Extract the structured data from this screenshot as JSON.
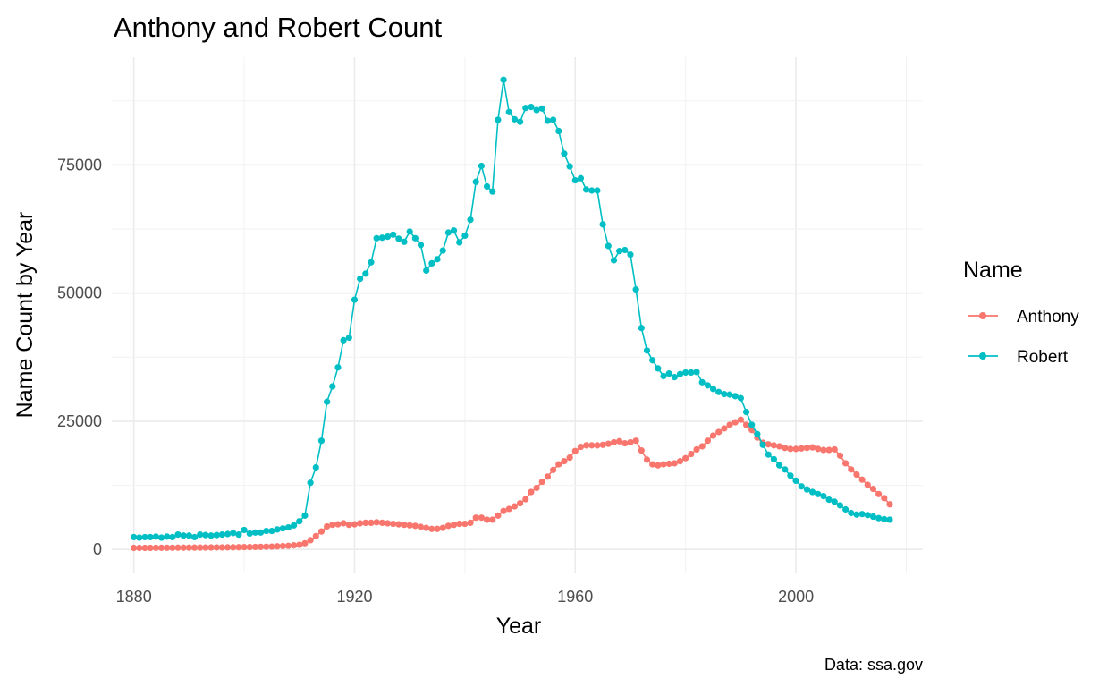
{
  "chart_data": {
    "type": "line",
    "title": "Anthony and Robert Count",
    "xlabel": "Year",
    "ylabel": "Name Count by Year",
    "caption": "Data: ssa.gov",
    "xlim": [
      1876,
      2023
    ],
    "ylim": [
      -4500,
      96000
    ],
    "x_ticks": [
      1880,
      1920,
      1960,
      2000
    ],
    "y_ticks": [
      0,
      25000,
      50000,
      75000
    ],
    "x_tick_labels": [
      "1880",
      "1920",
      "1960",
      "2000"
    ],
    "y_tick_labels": [
      "0",
      "25000",
      "50000",
      "75000"
    ],
    "grid": true,
    "legend": {
      "title": "Name",
      "position": "right"
    },
    "x": [
      1880,
      1881,
      1882,
      1883,
      1884,
      1885,
      1886,
      1887,
      1888,
      1889,
      1890,
      1891,
      1892,
      1893,
      1894,
      1895,
      1896,
      1897,
      1898,
      1899,
      1900,
      1901,
      1902,
      1903,
      1904,
      1905,
      1906,
      1907,
      1908,
      1909,
      1910,
      1911,
      1912,
      1913,
      1914,
      1915,
      1916,
      1917,
      1918,
      1919,
      1920,
      1921,
      1922,
      1923,
      1924,
      1925,
      1926,
      1927,
      1928,
      1929,
      1930,
      1931,
      1932,
      1933,
      1934,
      1935,
      1936,
      1937,
      1938,
      1939,
      1940,
      1941,
      1942,
      1943,
      1944,
      1945,
      1946,
      1947,
      1948,
      1949,
      1950,
      1951,
      1952,
      1953,
      1954,
      1955,
      1956,
      1957,
      1958,
      1959,
      1960,
      1961,
      1962,
      1963,
      1964,
      1965,
      1966,
      1967,
      1968,
      1969,
      1970,
      1971,
      1972,
      1973,
      1974,
      1975,
      1976,
      1977,
      1978,
      1979,
      1980,
      1981,
      1982,
      1983,
      1984,
      1985,
      1986,
      1987,
      1988,
      1989,
      1990,
      1991,
      1992,
      1993,
      1994,
      1995,
      1996,
      1997,
      1998,
      1999,
      2000,
      2001,
      2002,
      2003,
      2004,
      2005,
      2006,
      2007,
      2008,
      2009,
      2010,
      2011,
      2012,
      2013,
      2014,
      2015,
      2016,
      2017
    ],
    "series": [
      {
        "name": "Anthony",
        "color": "#F8766D",
        "values": [
          300,
          300,
          300,
          300,
          320,
          320,
          330,
          330,
          340,
          340,
          350,
          360,
          360,
          370,
          380,
          390,
          400,
          410,
          420,
          430,
          450,
          460,
          480,
          500,
          520,
          550,
          600,
          650,
          700,
          800,
          900,
          1200,
          1800,
          2600,
          3500,
          4500,
          4800,
          4900,
          5100,
          4800,
          4900,
          5100,
          5200,
          5200,
          5300,
          5200,
          5100,
          5000,
          4900,
          4800,
          4700,
          4600,
          4400,
          4200,
          4000,
          4000,
          4200,
          4600,
          4800,
          5000,
          5000,
          5200,
          6200,
          6200,
          5800,
          5800,
          6600,
          7500,
          7900,
          8400,
          9000,
          9800,
          11200,
          12000,
          13200,
          14200,
          15500,
          16600,
          17200,
          17900,
          19200,
          20000,
          20300,
          20300,
          20300,
          20400,
          20600,
          20900,
          21100,
          20700,
          20900,
          21200,
          19300,
          17500,
          16600,
          16400,
          16600,
          16700,
          16800,
          17200,
          17800,
          18600,
          19500,
          20100,
          21200,
          22200,
          22900,
          23600,
          24300,
          24800,
          25300,
          24300,
          23300,
          21800,
          20800,
          20500,
          20300,
          20100,
          19800,
          19600,
          19600,
          19700,
          19800,
          19900,
          19600,
          19400,
          19400,
          19500,
          18300,
          16800,
          15600,
          14600,
          13600,
          12600,
          11800,
          10800,
          10000,
          8800
        ]
      },
      {
        "name": "Robert",
        "color": "#00BFC4",
        "values": [
          2400,
          2300,
          2400,
          2400,
          2500,
          2300,
          2500,
          2400,
          2900,
          2700,
          2700,
          2400,
          2900,
          2800,
          2700,
          2800,
          2900,
          3000,
          3200,
          2900,
          3800,
          3100,
          3300,
          3300,
          3600,
          3600,
          3900,
          4100,
          4300,
          4700,
          5500,
          6600,
          13000,
          16000,
          21200,
          28800,
          31800,
          35500,
          40800,
          41300,
          48700,
          52800,
          53800,
          56000,
          60700,
          60800,
          61000,
          61400,
          60600,
          60000,
          62000,
          60700,
          59400,
          54400,
          55800,
          56600,
          58300,
          61800,
          62200,
          59900,
          61200,
          64300,
          71700,
          74800,
          70800,
          69800,
          83800,
          91600,
          85300,
          83900,
          83400,
          86100,
          86300,
          85700,
          86000,
          83600,
          83800,
          81600,
          77200,
          74700,
          72000,
          72400,
          70200,
          70000,
          70000,
          63400,
          59200,
          56400,
          58200,
          58400,
          57500,
          50700,
          43200,
          38800,
          36900,
          35300,
          33800,
          34300,
          33600,
          34200,
          34500,
          34500,
          34600,
          32600,
          32000,
          31300,
          30700,
          30300,
          30200,
          29900,
          29500,
          26800,
          24300,
          22500,
          20400,
          18500,
          17600,
          16400,
          15600,
          14400,
          13400,
          12300,
          11700,
          11200,
          10800,
          10400,
          9700,
          9300,
          8600,
          7800,
          7100,
          6800,
          6900,
          6700,
          6400,
          6100,
          5900,
          5800
        ]
      }
    ]
  }
}
